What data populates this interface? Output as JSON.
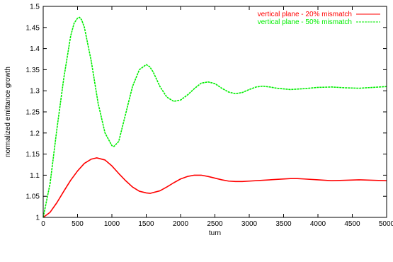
{
  "chart_data": {
    "type": "line",
    "title": "",
    "xlabel": "turn",
    "ylabel": "normalized emittance growth",
    "xlim": [
      0,
      5000
    ],
    "ylim": [
      1,
      1.5
    ],
    "xticks": [
      0,
      500,
      1000,
      1500,
      2000,
      2500,
      3000,
      3500,
      4000,
      4500,
      5000
    ],
    "yticks": [
      1,
      1.05,
      1.1,
      1.15,
      1.2,
      1.25,
      1.3,
      1.35,
      1.4,
      1.45,
      1.5
    ],
    "ytick_labels": [
      "1",
      "1.05",
      "1.1",
      "1.15",
      "1.2",
      "1.25",
      "1.3",
      "1.35",
      "1.4",
      "1.45",
      "1.5"
    ],
    "grid": false,
    "legend_position": "top-right",
    "series": [
      {
        "name": "vertical plane - 20% mismatch",
        "color": "#ff0000",
        "line_style": "solid",
        "x": [
          0,
          100,
          200,
          300,
          400,
          500,
          600,
          700,
          780,
          900,
          1000,
          1100,
          1200,
          1300,
          1400,
          1500,
          1560,
          1700,
          1800,
          1900,
          2000,
          2100,
          2200,
          2300,
          2400,
          2500,
          2600,
          2700,
          2800,
          2900,
          3000,
          3200,
          3400,
          3600,
          3700,
          3800,
          4000,
          4200,
          4400,
          4600,
          4800,
          5000
        ],
        "y": [
          1.0,
          1.012,
          1.035,
          1.062,
          1.088,
          1.11,
          1.128,
          1.138,
          1.141,
          1.136,
          1.122,
          1.104,
          1.087,
          1.072,
          1.062,
          1.058,
          1.057,
          1.063,
          1.072,
          1.082,
          1.091,
          1.097,
          1.1,
          1.1,
          1.097,
          1.093,
          1.089,
          1.086,
          1.085,
          1.085,
          1.086,
          1.088,
          1.09,
          1.092,
          1.092,
          1.091,
          1.089,
          1.087,
          1.088,
          1.089,
          1.088,
          1.087
        ]
      },
      {
        "name": "vertical plane - 50% mismatch",
        "color": "#00ee00",
        "line_style": "dashed",
        "x": [
          0,
          100,
          200,
          300,
          400,
          450,
          500,
          530,
          560,
          600,
          700,
          800,
          900,
          1000,
          1030,
          1100,
          1200,
          1300,
          1400,
          1500,
          1550,
          1600,
          1700,
          1800,
          1900,
          2000,
          2100,
          2200,
          2300,
          2400,
          2500,
          2600,
          2700,
          2800,
          2900,
          3000,
          3100,
          3200,
          3300,
          3400,
          3600,
          3800,
          4000,
          4200,
          4400,
          4600,
          4800,
          5000
        ],
        "y": [
          1.0,
          1.08,
          1.21,
          1.33,
          1.43,
          1.46,
          1.472,
          1.474,
          1.468,
          1.45,
          1.37,
          1.27,
          1.2,
          1.17,
          1.168,
          1.18,
          1.245,
          1.31,
          1.35,
          1.362,
          1.357,
          1.345,
          1.31,
          1.285,
          1.275,
          1.278,
          1.29,
          1.305,
          1.318,
          1.321,
          1.317,
          1.306,
          1.297,
          1.293,
          1.296,
          1.303,
          1.309,
          1.311,
          1.309,
          1.306,
          1.303,
          1.305,
          1.308,
          1.309,
          1.307,
          1.306,
          1.308,
          1.31
        ]
      }
    ]
  }
}
